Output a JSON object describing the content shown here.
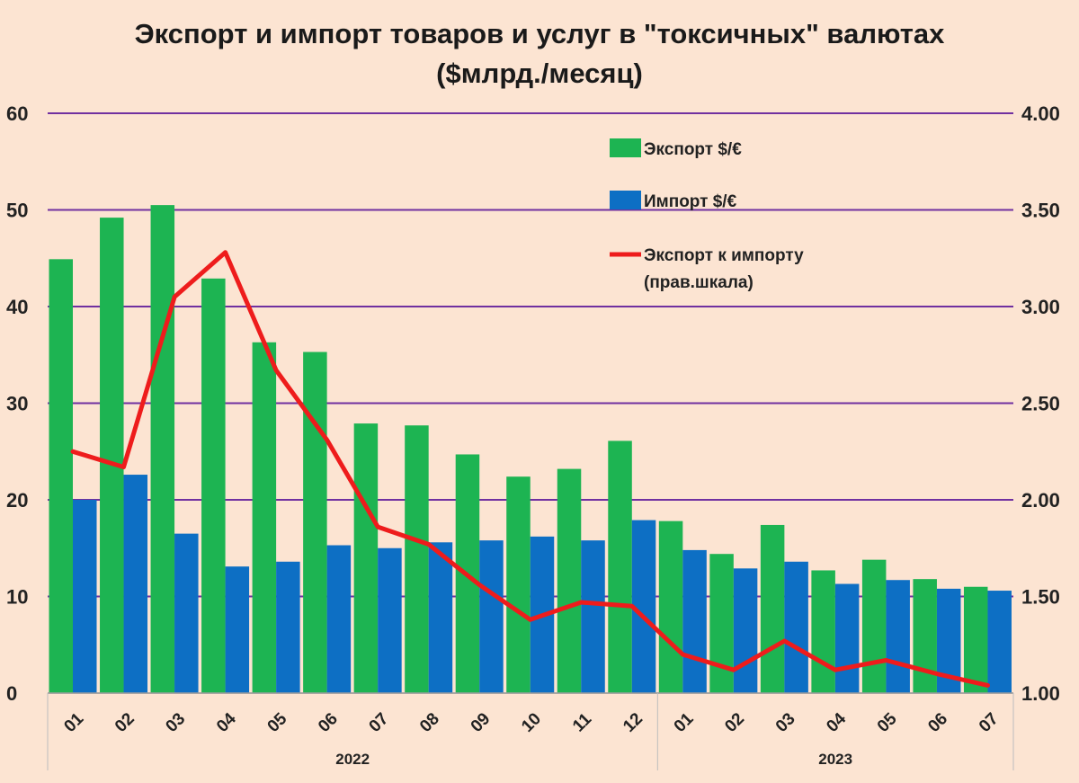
{
  "chart_data": {
    "type": "bar",
    "title_line1": "Экспорт и импорт товаров и услуг в \"токсичных\" валютах",
    "title_line2": "($млрд./месяц)",
    "categories": [
      "01",
      "02",
      "03",
      "04",
      "05",
      "06",
      "07",
      "08",
      "09",
      "10",
      "11",
      "12",
      "01",
      "02",
      "03",
      "04",
      "05",
      "06",
      "07"
    ],
    "years": [
      {
        "label": "2022",
        "count": 12
      },
      {
        "label": "2023",
        "count": 7
      }
    ],
    "series": [
      {
        "name": "Экспорт $/€",
        "kind": "bar",
        "axis": "left",
        "color": "#1db452",
        "values": [
          44.9,
          49.2,
          50.5,
          42.9,
          36.3,
          35.3,
          27.9,
          27.7,
          24.7,
          22.4,
          23.2,
          26.1,
          17.8,
          14.4,
          17.4,
          12.7,
          13.8,
          11.8,
          11.0
        ]
      },
      {
        "name": "Импорт $/€",
        "kind": "bar",
        "axis": "left",
        "color": "#0d6fc4",
        "values": [
          20.0,
          22.6,
          16.5,
          13.1,
          13.6,
          15.3,
          15.0,
          15.6,
          15.8,
          16.2,
          15.8,
          17.9,
          14.8,
          12.9,
          13.6,
          11.3,
          11.7,
          10.8,
          10.6
        ]
      },
      {
        "name": "Экспорт к импорту",
        "name_line2": "(прав.шкала)",
        "kind": "line",
        "axis": "right",
        "color": "#ee1c1c",
        "values": [
          2.25,
          2.17,
          3.05,
          3.28,
          2.67,
          2.31,
          1.86,
          1.77,
          1.56,
          1.38,
          1.47,
          1.45,
          1.2,
          1.12,
          1.27,
          1.12,
          1.17,
          1.1,
          1.04
        ]
      }
    ],
    "y_left": {
      "min": 0,
      "max": 60,
      "ticks": [
        "0",
        "10",
        "20",
        "30",
        "40",
        "50",
        "60"
      ]
    },
    "y_right": {
      "min": 1.0,
      "max": 4.0,
      "ticks": [
        "1.00",
        "1.50",
        "2.00",
        "2.50",
        "3.00",
        "3.50",
        "4.00"
      ]
    },
    "grid": true,
    "grid_color": "#7030a0",
    "legend_position": "top-right"
  }
}
